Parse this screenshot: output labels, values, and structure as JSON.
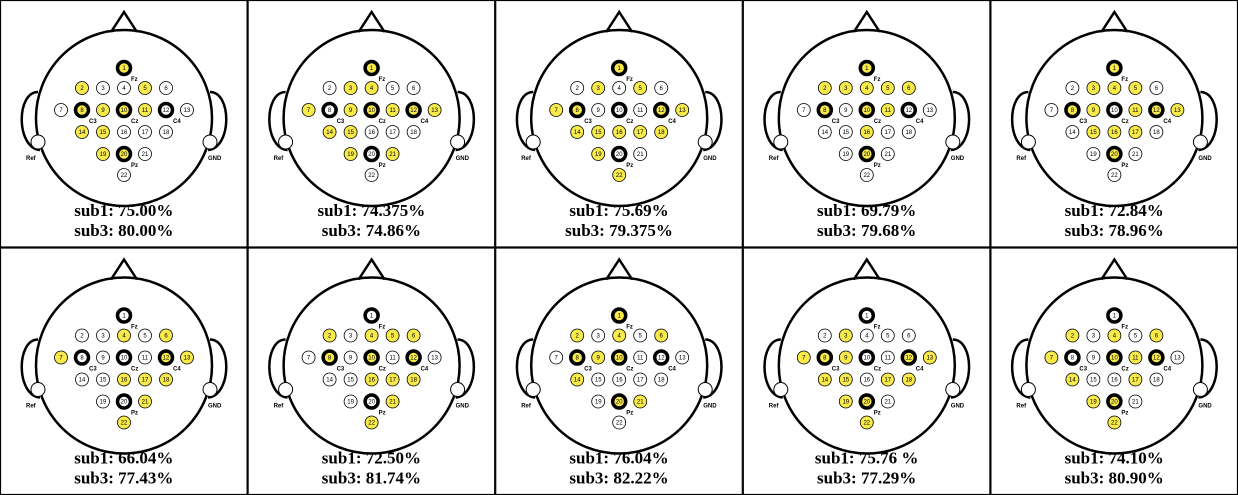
{
  "electrodes": [
    {
      "label": "1",
      "site": "Fz"
    },
    {
      "label": "2"
    },
    {
      "label": "3"
    },
    {
      "label": "4"
    },
    {
      "label": "5"
    },
    {
      "label": "6"
    },
    {
      "label": "7"
    },
    {
      "label": "8",
      "site": "C3"
    },
    {
      "label": "9"
    },
    {
      "label": "10",
      "site": "Cz"
    },
    {
      "label": "11"
    },
    {
      "label": "12",
      "site": "C4"
    },
    {
      "label": "13"
    },
    {
      "label": "14"
    },
    {
      "label": "15"
    },
    {
      "label": "16"
    },
    {
      "label": "17"
    },
    {
      "label": "18"
    },
    {
      "label": "19"
    },
    {
      "label": "20",
      "site": "Pz"
    },
    {
      "label": "21"
    },
    {
      "label": "22"
    }
  ],
  "reference": {
    "label": "Ref"
  },
  "ground": {
    "label": "GND"
  },
  "highlight_color": "#f7ea4a",
  "cells": [
    {
      "lines": [
        "sub1: 75.00%",
        "sub3: 80.00%"
      ],
      "selected": [
        1,
        2,
        5,
        8,
        9,
        10,
        11,
        14,
        15,
        19,
        20
      ]
    },
    {
      "lines": [
        "sub1: 74.375%",
        "sub3: 74.86%"
      ],
      "selected": [
        1,
        3,
        4,
        7,
        9,
        10,
        11,
        12,
        13,
        14,
        15,
        19,
        21
      ]
    },
    {
      "lines": [
        "sub1: 75.69%",
        "sub3: 79.375%"
      ],
      "selected": [
        1,
        3,
        5,
        7,
        8,
        12,
        13,
        14,
        15,
        16,
        17,
        18,
        19,
        22
      ]
    },
    {
      "lines": [
        "sub1: 69.79%",
        "sub3: 79.68%"
      ],
      "selected": [
        1,
        2,
        3,
        4,
        5,
        6,
        8,
        10,
        11,
        16,
        20
      ]
    },
    {
      "lines": [
        "sub1: 72.84%",
        "sub3: 78.96%"
      ],
      "selected": [
        1,
        3,
        4,
        5,
        8,
        9,
        11,
        12,
        13,
        15,
        16,
        17,
        20
      ]
    },
    {
      "lines": [
        "sub1: 66.04%",
        "sub3: 77.43%"
      ],
      "selected": [
        4,
        6,
        7,
        12,
        13,
        16,
        17,
        18,
        21,
        22
      ]
    },
    {
      "lines": [
        "sub1: 72.50%",
        "sub3: 81.74%"
      ],
      "selected": [
        2,
        4,
        5,
        6,
        8,
        10,
        12,
        16,
        17,
        18,
        21,
        22
      ]
    },
    {
      "lines": [
        "sub1: 76.04%",
        "sub3: 82.22%"
      ],
      "selected": [
        1,
        2,
        4,
        6,
        8,
        9,
        10,
        14,
        20,
        21
      ]
    },
    {
      "lines": [
        "sub1: 75.76 %",
        "sub3: 77.29%"
      ],
      "selected": [
        3,
        7,
        8,
        9,
        12,
        13,
        14,
        15,
        17,
        18,
        19,
        20,
        22
      ]
    },
    {
      "lines": [
        "sub1: 74.10%",
        "sub3: 80.90%"
      ],
      "selected": [
        2,
        4,
        6,
        7,
        10,
        11,
        12,
        14,
        17,
        19,
        20,
        22
      ]
    }
  ]
}
